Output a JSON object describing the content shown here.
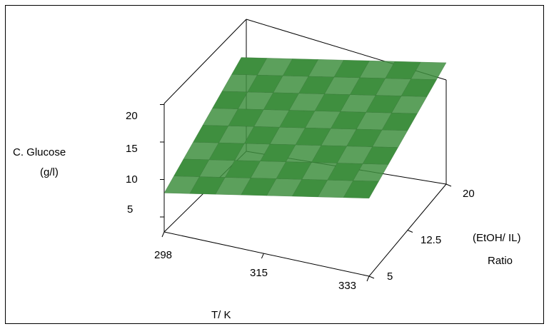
{
  "chart_data": {
    "type": "surface",
    "xlabel": "T/ K",
    "ylabel_lines": [
      "(EtOH/ IL)",
      "Ratio"
    ],
    "zlabel_lines": [
      "C. Glucose",
      "(g/l)"
    ],
    "x_ticks": [
      "298",
      "315",
      "333"
    ],
    "y_ticks": [
      "5",
      "12.5",
      "20"
    ],
    "z_ticks": [
      "5",
      "10",
      "15",
      "20"
    ],
    "xlim": [
      298,
      333
    ],
    "ylim": [
      5,
      20
    ],
    "zlim": [
      3,
      21
    ],
    "surface": {
      "x": [
        298,
        333
      ],
      "y": [
        5,
        20
      ],
      "z": [
        [
          8.2,
          14.0
        ],
        [
          13.4,
          19.2
        ]
      ],
      "color": "#3f8f3f"
    },
    "grid": false
  }
}
